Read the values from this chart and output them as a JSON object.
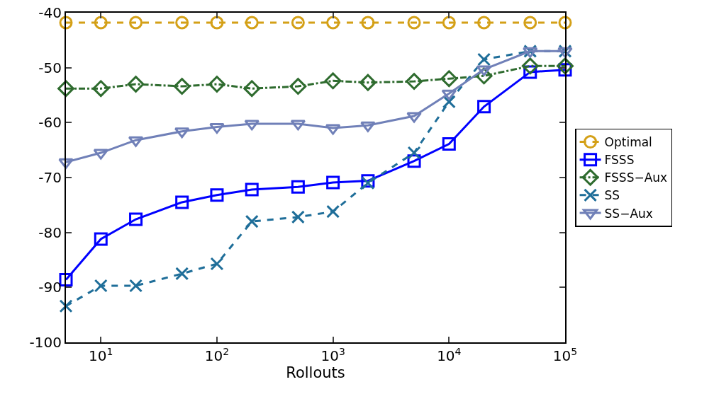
{
  "chart_data": {
    "type": "line",
    "xlabel": "Rollouts",
    "log": "x",
    "grid": false,
    "legend": "right",
    "x": [
      5,
      10,
      20,
      50,
      100,
      200,
      500,
      1000,
      2000,
      5000,
      10000,
      20000,
      50000,
      100000
    ],
    "xlim": [
      5,
      100000
    ],
    "xticks": [
      {
        "value": 10,
        "label": "10$^{1}$"
      },
      {
        "value": 100,
        "label": "10$^{2}$"
      },
      {
        "value": 1000,
        "label": "10$^{3}$"
      },
      {
        "value": 10000,
        "label": "10$^{4}$"
      },
      {
        "value": 100000,
        "label": "10$^{5}$"
      }
    ],
    "ylim": [
      -100,
      -40
    ],
    "yticks": [
      -100,
      -90,
      -80,
      -70,
      -60,
      -50,
      -40
    ],
    "series": [
      {
        "name": "Optimal",
        "color": "#d4a017",
        "marker": "circle",
        "line_style": "dashed",
        "values": [
          -41.8,
          -41.8,
          -41.8,
          -41.8,
          -41.8,
          -41.8,
          -41.8,
          -41.8,
          -41.8,
          -41.8,
          -41.8,
          -41.8,
          -41.8,
          -41.8
        ]
      },
      {
        "name": "FSSS",
        "color": "#0000ff",
        "marker": "square",
        "line_style": "solid",
        "values": [
          -88.6,
          -81.2,
          -77.6,
          -74.5,
          -73.2,
          -72.2,
          -71.7,
          -70.9,
          -70.6,
          -67.0,
          -63.9,
          -57.1,
          -50.8,
          -50.4
        ]
      },
      {
        "name": "FSSS−Aux",
        "color": "#2e6b2e",
        "marker": "diamond",
        "line_style": "dashdot",
        "values": [
          -53.8,
          -53.8,
          -53.0,
          -53.4,
          -53.0,
          -53.8,
          -53.4,
          -52.4,
          -52.7,
          -52.5,
          -52.0,
          -51.5,
          -49.7,
          -49.7
        ]
      },
      {
        "name": "SS",
        "color": "#1f6e99",
        "marker": "cross",
        "line_style": "dashed",
        "values": [
          -93.4,
          -89.7,
          -89.7,
          -87.5,
          -85.7,
          -78.0,
          -77.2,
          -76.2,
          -71.0,
          -65.5,
          -56.2,
          -48.5,
          -47.0,
          -47.0
        ]
      },
      {
        "name": "SS−Aux",
        "color": "#7080b8",
        "marker": "triangle-down",
        "line_style": "solid",
        "values": [
          -67.2,
          -65.5,
          -63.2,
          -61.6,
          -60.8,
          -60.2,
          -60.2,
          -61.0,
          -60.5,
          -58.8,
          -54.7,
          -50.3,
          -47.0,
          -47.0
        ]
      }
    ]
  }
}
